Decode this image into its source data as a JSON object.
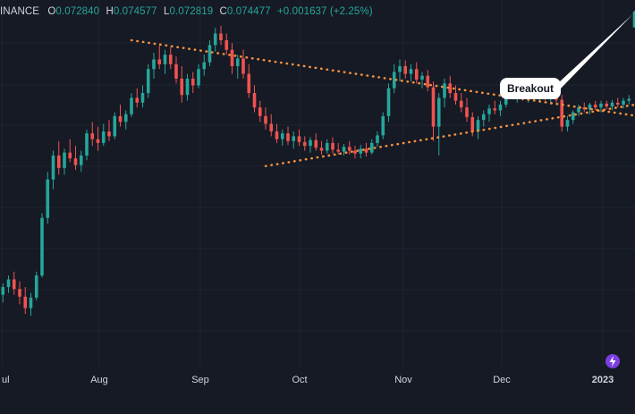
{
  "header": {
    "symbol": "INANCE",
    "o_label": "O",
    "o": "0.072840",
    "h_label": "H",
    "h": "0.074577",
    "l_label": "L",
    "l": "0.072819",
    "c_label": "C",
    "c": "0.074477",
    "change": "+0.001637 (+2.25%)"
  },
  "annotation": {
    "text": "Breakout"
  },
  "colors": {
    "background": "#161a25",
    "up": "#26a69a",
    "down": "#ef5350",
    "trendline": "#f5923e",
    "grid": "#1f2430",
    "axis_text": "#d1d4dc"
  },
  "logo_icon": "lightning-icon",
  "chart_data": {
    "type": "candlestick",
    "title": "",
    "xlabel": "",
    "ylabel": "",
    "x_ticks": [
      "ul",
      "Aug",
      "Sep",
      "Oct",
      "Nov",
      "Dec",
      "2023"
    ],
    "ohlc": [
      [
        0.0443,
        0.0458,
        0.0436,
        0.045
      ],
      [
        0.045,
        0.0462,
        0.0442,
        0.0458
      ],
      [
        0.0458,
        0.047,
        0.0452,
        0.0466
      ],
      [
        0.0466,
        0.0474,
        0.045,
        0.0456
      ],
      [
        0.0456,
        0.0464,
        0.044,
        0.0448
      ],
      [
        0.0448,
        0.0458,
        0.043,
        0.0436
      ],
      [
        0.0436,
        0.0452,
        0.0428,
        0.0447
      ],
      [
        0.0447,
        0.0474,
        0.0444,
        0.047
      ],
      [
        0.047,
        0.0535,
        0.0468,
        0.053
      ],
      [
        0.053,
        0.0578,
        0.0524,
        0.057
      ],
      [
        0.057,
        0.06,
        0.056,
        0.0595
      ],
      [
        0.0595,
        0.061,
        0.0575,
        0.0582
      ],
      [
        0.0582,
        0.0602,
        0.0575,
        0.0598
      ],
      [
        0.0598,
        0.0612,
        0.0588,
        0.0592
      ],
      [
        0.0592,
        0.0605,
        0.058,
        0.0585
      ],
      [
        0.0585,
        0.06,
        0.0578,
        0.0595
      ],
      [
        0.0595,
        0.0622,
        0.059,
        0.0618
      ],
      [
        0.0618,
        0.063,
        0.0605,
        0.0612
      ],
      [
        0.0612,
        0.0625,
        0.06,
        0.0608
      ],
      [
        0.0608,
        0.0628,
        0.0605,
        0.062
      ],
      [
        0.062,
        0.0632,
        0.061,
        0.0615
      ],
      [
        0.0615,
        0.064,
        0.0612,
        0.0636
      ],
      [
        0.0636,
        0.0648,
        0.0625,
        0.063
      ],
      [
        0.063,
        0.0642,
        0.0622,
        0.0638
      ],
      [
        0.0638,
        0.066,
        0.0635,
        0.0655
      ],
      [
        0.0655,
        0.0665,
        0.0645,
        0.065
      ],
      [
        0.065,
        0.0668,
        0.0645,
        0.066
      ],
      [
        0.066,
        0.069,
        0.0655,
        0.0685
      ],
      [
        0.0685,
        0.0702,
        0.0675,
        0.0695
      ],
      [
        0.0695,
        0.071,
        0.0685,
        0.069
      ],
      [
        0.069,
        0.0705,
        0.068,
        0.07
      ],
      [
        0.07,
        0.0708,
        0.0685,
        0.069
      ],
      [
        0.069,
        0.0698,
        0.067,
        0.0675
      ],
      [
        0.0675,
        0.0688,
        0.065,
        0.0658
      ],
      [
        0.0658,
        0.068,
        0.0652,
        0.0675
      ],
      [
        0.0675,
        0.0682,
        0.066,
        0.0668
      ],
      [
        0.0668,
        0.069,
        0.0665,
        0.0685
      ],
      [
        0.0685,
        0.07,
        0.0678,
        0.0692
      ],
      [
        0.0692,
        0.0715,
        0.0688,
        0.071
      ],
      [
        0.071,
        0.0728,
        0.0703,
        0.0722
      ],
      [
        0.0722,
        0.073,
        0.071,
        0.0715
      ],
      [
        0.0715,
        0.0722,
        0.07,
        0.0705
      ],
      [
        0.0705,
        0.0712,
        0.068,
        0.0688
      ],
      [
        0.0688,
        0.07,
        0.0675,
        0.0696
      ],
      [
        0.0696,
        0.0705,
        0.0675,
        0.068
      ],
      [
        0.068,
        0.069,
        0.0655,
        0.066
      ],
      [
        0.066,
        0.0668,
        0.064,
        0.0645
      ],
      [
        0.0645,
        0.0652,
        0.063,
        0.0636
      ],
      [
        0.0636,
        0.0645,
        0.0622,
        0.0628
      ],
      [
        0.0628,
        0.0638,
        0.0615,
        0.062
      ],
      [
        0.062,
        0.0628,
        0.0608,
        0.0612
      ],
      [
        0.0612,
        0.0622,
        0.0605,
        0.0618
      ],
      [
        0.0618,
        0.0625,
        0.0606,
        0.061
      ],
      [
        0.061,
        0.062,
        0.0602,
        0.0615
      ],
      [
        0.0615,
        0.0622,
        0.0605,
        0.0609
      ],
      [
        0.0609,
        0.0615,
        0.06,
        0.0605
      ],
      [
        0.0605,
        0.0614,
        0.0598,
        0.0611
      ],
      [
        0.0611,
        0.0618,
        0.06,
        0.0603
      ],
      [
        0.0603,
        0.061,
        0.0596,
        0.06
      ],
      [
        0.06,
        0.0612,
        0.0597,
        0.0608
      ],
      [
        0.0608,
        0.0614,
        0.0597,
        0.0601
      ],
      [
        0.0601,
        0.0608,
        0.0596,
        0.0599
      ],
      [
        0.0599,
        0.0607,
        0.0595,
        0.0604
      ],
      [
        0.0604,
        0.061,
        0.0596,
        0.06
      ],
      [
        0.06,
        0.0605,
        0.0592,
        0.0597
      ],
      [
        0.0597,
        0.0606,
        0.0592,
        0.0602
      ],
      [
        0.0602,
        0.0608,
        0.0594,
        0.0598
      ],
      [
        0.0598,
        0.0612,
        0.0596,
        0.0608
      ],
      [
        0.0608,
        0.062,
        0.0604,
        0.0616
      ],
      [
        0.0616,
        0.064,
        0.0612,
        0.0636
      ],
      [
        0.0636,
        0.067,
        0.063,
        0.0665
      ],
      [
        0.0665,
        0.069,
        0.066,
        0.0682
      ],
      [
        0.0682,
        0.0695,
        0.0672,
        0.0688
      ],
      [
        0.0688,
        0.0694,
        0.0675,
        0.068
      ],
      [
        0.068,
        0.069,
        0.0672,
        0.0685
      ],
      [
        0.0685,
        0.0692,
        0.067,
        0.0674
      ],
      [
        0.0674,
        0.0682,
        0.0665,
        0.0678
      ],
      [
        0.0678,
        0.0684,
        0.0662,
        0.0666
      ],
      [
        0.0666,
        0.0672,
        0.061,
        0.0625
      ],
      [
        0.0625,
        0.066,
        0.0595,
        0.0655
      ],
      [
        0.0655,
        0.0675,
        0.0645,
        0.067
      ],
      [
        0.067,
        0.0678,
        0.0655,
        0.066
      ],
      [
        0.066,
        0.0668,
        0.0648,
        0.0652
      ],
      [
        0.0652,
        0.066,
        0.064,
        0.0645
      ],
      [
        0.0645,
        0.0655,
        0.063,
        0.0635
      ],
      [
        0.0635,
        0.064,
        0.0615,
        0.062
      ],
      [
        0.062,
        0.0636,
        0.0612,
        0.0632
      ],
      [
        0.0632,
        0.0642,
        0.0625,
        0.0638
      ],
      [
        0.0638,
        0.0648,
        0.063,
        0.0644
      ],
      [
        0.0644,
        0.0652,
        0.0638,
        0.0642
      ],
      [
        0.0642,
        0.0652,
        0.0636,
        0.0648
      ],
      [
        0.0648,
        0.0668,
        0.0645,
        0.0664
      ],
      [
        0.0664,
        0.0672,
        0.0655,
        0.066
      ],
      [
        0.066,
        0.0668,
        0.065,
        0.0664
      ],
      [
        0.0664,
        0.067,
        0.0652,
        0.0658
      ],
      [
        0.0658,
        0.0666,
        0.065,
        0.0662
      ],
      [
        0.0662,
        0.0668,
        0.0652,
        0.0656
      ],
      [
        0.0656,
        0.0664,
        0.065,
        0.066
      ],
      [
        0.066,
        0.0666,
        0.0652,
        0.0655
      ],
      [
        0.0655,
        0.0662,
        0.0648,
        0.0658
      ],
      [
        0.0658,
        0.0664,
        0.065,
        0.0653
      ],
      [
        0.0653,
        0.0658,
        0.062,
        0.0625
      ],
      [
        0.0625,
        0.0636,
        0.062,
        0.0632
      ],
      [
        0.0632,
        0.0642,
        0.0628,
        0.064
      ],
      [
        0.064,
        0.0648,
        0.0636,
        0.0645
      ],
      [
        0.0645,
        0.065,
        0.064,
        0.0643
      ],
      [
        0.0643,
        0.065,
        0.0638,
        0.0648
      ],
      [
        0.0648,
        0.0652,
        0.0642,
        0.0645
      ],
      [
        0.0645,
        0.0652,
        0.064,
        0.0649
      ],
      [
        0.0649,
        0.0652,
        0.0643,
        0.0646
      ],
      [
        0.0646,
        0.0653,
        0.0642,
        0.065
      ],
      [
        0.065,
        0.0655,
        0.0645,
        0.0648
      ],
      [
        0.0648,
        0.0655,
        0.0644,
        0.0652
      ],
      [
        0.0652,
        0.0658,
        0.0648,
        0.0654
      ],
      [
        0.07284,
        0.074577,
        0.072819,
        0.074477
      ]
    ],
    "trendlines": [
      {
        "name": "upper",
        "style": "dotted",
        "start_candle": 24,
        "start_price": 0.0715,
        "end_candle": 110,
        "end_price": 0.064
      },
      {
        "name": "lower",
        "style": "dotted",
        "start_candle": 48,
        "start_price": 0.0584,
        "end_candle": 110,
        "end_price": 0.0644
      }
    ]
  }
}
